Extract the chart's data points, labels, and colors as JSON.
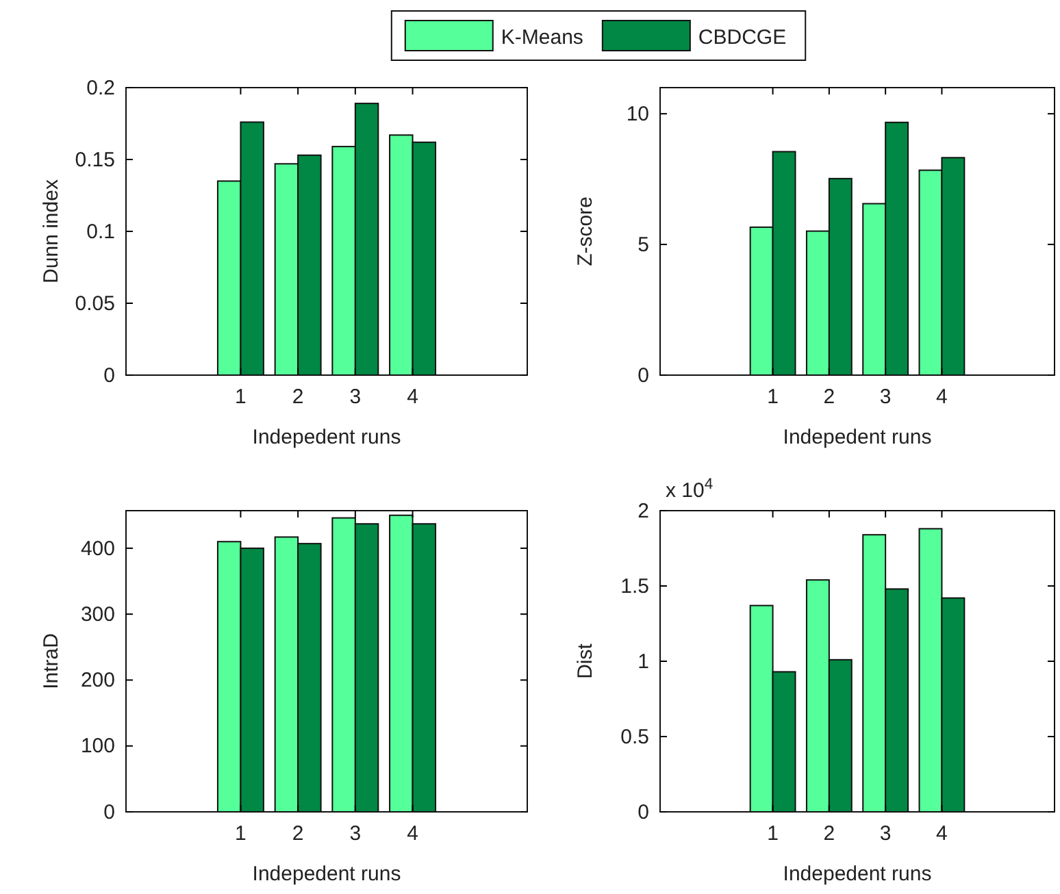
{
  "chart_data": [
    {
      "type": "bar",
      "categories": [
        "1",
        "2",
        "3",
        "4"
      ],
      "xlabel": "Indepedent runs",
      "ylabel": "Dunn index",
      "ylim": [
        0,
        0.2
      ],
      "yticks": [
        0,
        0.05,
        0.1,
        0.15,
        0.2
      ],
      "legend": "top",
      "series": [
        {
          "name": "K-Means",
          "color": "#55ff99",
          "values": [
            0.135,
            0.147,
            0.159,
            0.167
          ]
        },
        {
          "name": "CBDCGE",
          "color": "#008844",
          "values": [
            0.176,
            0.153,
            0.189,
            0.162
          ]
        }
      ]
    },
    {
      "type": "bar",
      "categories": [
        "1",
        "2",
        "3",
        "4"
      ],
      "xlabel": "Indepedent runs",
      "ylabel": "Z-score",
      "ylim": [
        0,
        11
      ],
      "yticks": [
        0,
        5,
        10
      ],
      "series": [
        {
          "color": "#55ff99",
          "values": [
            5.66,
            5.51,
            6.56,
            7.84
          ]
        },
        {
          "color": "#008844",
          "values": [
            8.55,
            7.52,
            9.67,
            8.32
          ]
        }
      ]
    },
    {
      "type": "bar",
      "categories": [
        "1",
        "2",
        "3",
        "4"
      ],
      "xlabel": "Indepedent runs",
      "ylabel": "IntraD",
      "ylim": [
        0,
        457
      ],
      "yticks": [
        0,
        100,
        200,
        300,
        400
      ],
      "series": [
        {
          "color": "#55ff99",
          "values": [
            410,
            417,
            446,
            450
          ]
        },
        {
          "color": "#008844",
          "values": [
            400,
            407,
            437,
            437
          ]
        }
      ]
    },
    {
      "type": "bar",
      "categories": [
        "1",
        "2",
        "3",
        "4"
      ],
      "xlabel": "Indepedent runs",
      "ylabel": "Dist",
      "ylim": [
        0,
        2
      ],
      "yticks": [
        0,
        0.5,
        1,
        1.5,
        2
      ],
      "annotations": [
        "x 10$^{4}$"
      ],
      "series": [
        {
          "color": "#55ff99",
          "values": [
            1.37,
            1.54,
            1.84,
            1.88
          ]
        },
        {
          "color": "#008844",
          "values": [
            0.93,
            1.01,
            1.48,
            1.42
          ]
        }
      ]
    }
  ]
}
